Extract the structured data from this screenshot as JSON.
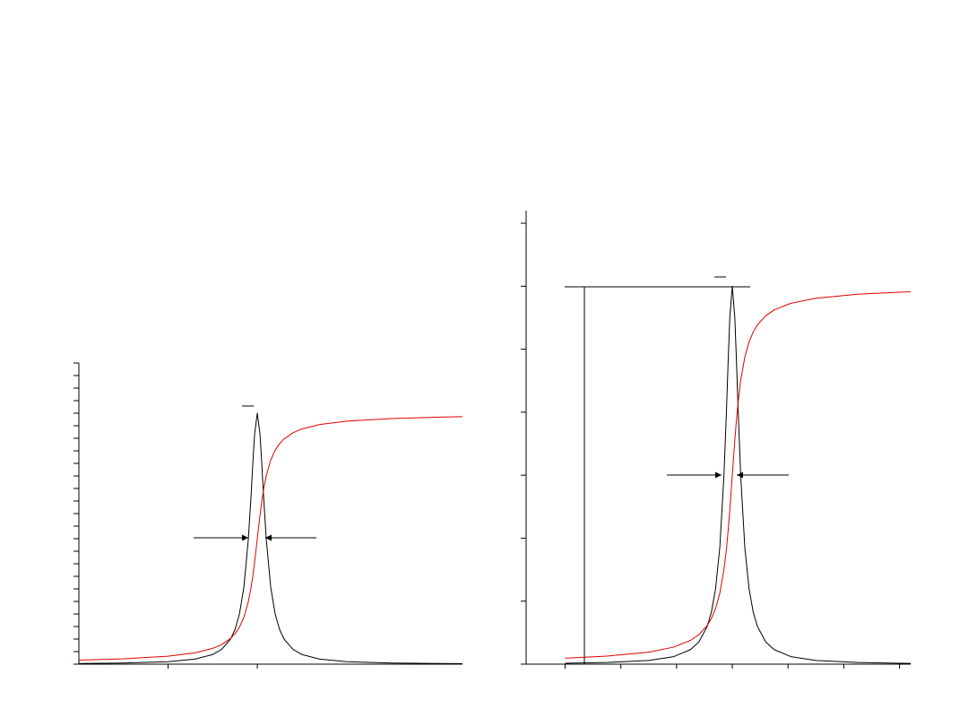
{
  "chart_data": [
    {
      "type": "line",
      "x": [
        -2,
        -1.5,
        -1,
        -0.7,
        -0.5,
        -0.4,
        -0.3,
        -0.25,
        -0.2,
        -0.15,
        -0.1,
        -0.07,
        -0.05,
        -0.03,
        0,
        0.03,
        0.05,
        0.07,
        0.1,
        0.15,
        0.2,
        0.25,
        0.3,
        0.4,
        0.5,
        0.7,
        1,
        1.5,
        2,
        2.3
      ],
      "series": [
        {
          "color": "#000000",
          "values": [
            0.0025,
            0.0044,
            0.0099,
            0.02,
            0.0385,
            0.0588,
            0.1,
            0.1379,
            0.2,
            0.3077,
            0.5,
            0.6711,
            0.8,
            0.9174,
            1,
            0.9174,
            0.8,
            0.6711,
            0.5,
            0.3077,
            0.2,
            0.1379,
            0.1,
            0.0588,
            0.0385,
            0.02,
            0.0099,
            0.0044,
            0.0025,
            0.0019
          ]
        },
        {
          "color": "#e00000",
          "values": [
            0.0159,
            0.0212,
            0.0317,
            0.0452,
            0.0628,
            0.078,
            0.1024,
            0.1211,
            0.1476,
            0.1872,
            0.25,
            0.3056,
            0.3524,
            0.4072,
            0.5,
            0.5928,
            0.6476,
            0.6944,
            0.75,
            0.8128,
            0.8524,
            0.8789,
            0.8976,
            0.922,
            0.9372,
            0.9548,
            0.9683,
            0.9788,
            0.9841,
            0.9862
          ]
        }
      ],
      "xlim": [
        -2,
        2.3
      ],
      "xticks": [
        -1,
        0
      ],
      "ylim": [
        0,
        1.2
      ],
      "yticks": [
        0,
        0.05,
        0.1,
        0.15,
        0.2,
        0.25,
        0.3,
        0.35,
        0.4,
        0.45,
        0.5,
        0.55,
        0.6,
        0.65,
        0.7,
        0.75,
        0.8,
        0.85,
        0.9,
        0.95,
        1,
        1.05,
        1.1,
        1.15,
        1.2
      ]
    },
    {
      "type": "line",
      "x": [
        -3,
        -2.25,
        -1.5,
        -1.05,
        -0.75,
        -0.6,
        -0.45,
        -0.375,
        -0.3,
        -0.225,
        -0.15,
        -0.105,
        -0.075,
        -0.045,
        0,
        0.045,
        0.075,
        0.105,
        0.15,
        0.225,
        0.3,
        0.375,
        0.45,
        0.6,
        0.75,
        1.05,
        1.5,
        2.25,
        3,
        3.2
      ],
      "series": [
        {
          "color": "#000000",
          "values": [
            0.015,
            0.0264,
            0.0594,
            0.12,
            0.231,
            0.3528,
            0.6,
            0.8274,
            1.2,
            1.8462,
            3,
            4.0266,
            4.8,
            5.5044,
            6,
            5.5044,
            4.8,
            4.0266,
            3,
            1.8462,
            1.2,
            0.8274,
            0.6,
            0.3528,
            0.231,
            0.12,
            0.0594,
            0.0264,
            0.015,
            0.0132
          ]
        },
        {
          "color": "#e00000",
          "values": [
            0.0954,
            0.1272,
            0.1902,
            0.2712,
            0.3768,
            0.468,
            0.6144,
            0.7266,
            0.8856,
            1.1232,
            1.5,
            1.8336,
            2.1144,
            2.4432,
            3,
            3.5568,
            3.8856,
            4.1664,
            4.5,
            4.8768,
            5.1144,
            5.2734,
            5.3856,
            5.532,
            5.6232,
            5.7288,
            5.8098,
            5.8728,
            5.9046,
            5.9106
          ]
        }
      ],
      "xlim": [
        -3.7,
        3.2
      ],
      "xticks": [
        -3,
        -2,
        -1,
        0,
        1,
        2,
        3
      ],
      "ylim": [
        0,
        7.2
      ],
      "yticks": [
        0,
        1,
        2,
        3,
        4,
        5,
        6,
        7
      ]
    }
  ]
}
